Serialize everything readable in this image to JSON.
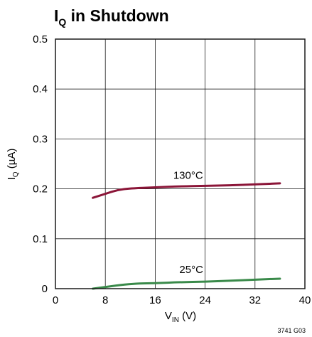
{
  "chart_data": {
    "type": "line",
    "title": {
      "main": "I",
      "subscript": "Q",
      "rest": " in Shutdown"
    },
    "xlabel": {
      "main": "V",
      "subscript": "IN",
      "rest": " (V)"
    },
    "ylabel": {
      "main": "I",
      "subscript": "Q",
      "rest": " (µA)"
    },
    "xlim": [
      0,
      40
    ],
    "ylim": [
      0,
      0.5
    ],
    "xticks": [
      0,
      8,
      16,
      24,
      32,
      40
    ],
    "yticks": [
      0,
      0.1,
      0.2,
      0.3,
      0.4,
      0.5
    ],
    "xtick_labels": [
      "0",
      "8",
      "16",
      "24",
      "32",
      "40"
    ],
    "ytick_labels": [
      "0",
      "0.1",
      "0.2",
      "0.3",
      "0.4",
      "0.5"
    ],
    "grid": true,
    "series": [
      {
        "name": "130°C",
        "color": "#8b1538",
        "x": [
          6,
          8,
          10,
          12,
          16,
          20,
          24,
          28,
          32,
          36
        ],
        "y": [
          0.182,
          0.19,
          0.198,
          0.201,
          0.203,
          0.205,
          0.206,
          0.207,
          0.209,
          0.211
        ]
      },
      {
        "name": "25°C",
        "color": "#3a8a4a",
        "x": [
          6,
          12,
          16,
          20,
          24,
          28,
          32,
          36
        ],
        "y": [
          0.0,
          0.01,
          0.011,
          0.013,
          0.014,
          0.016,
          0.018,
          0.02
        ]
      }
    ],
    "figure_id": "3741 G03"
  }
}
